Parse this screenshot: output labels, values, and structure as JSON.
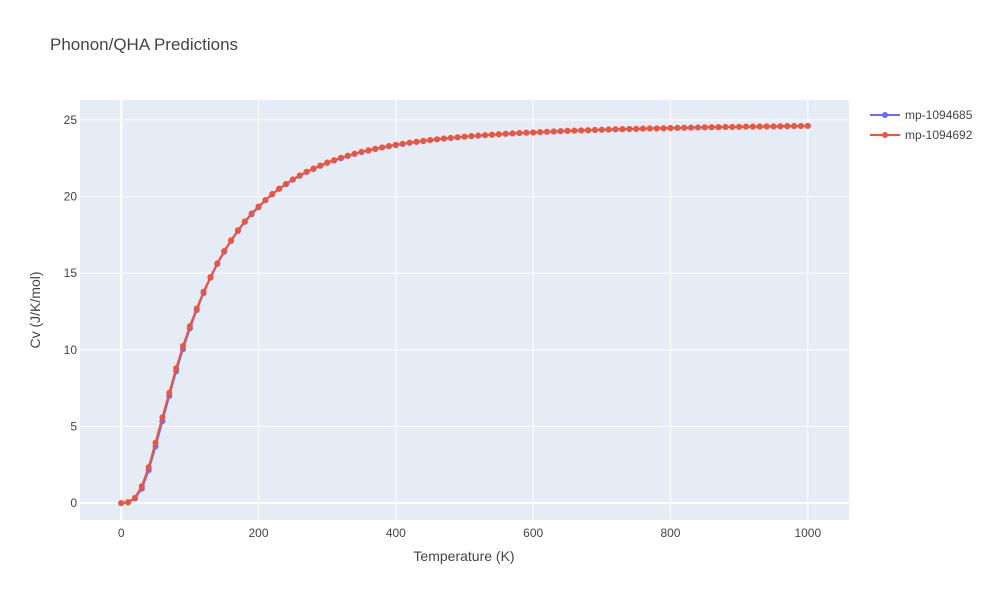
{
  "chart_data": {
    "type": "line",
    "title": "Phonon/QHA Predictions",
    "xlabel": "Temperature (K)",
    "ylabel": "Cv (J/K/mol)",
    "xlim": [
      -60,
      1060
    ],
    "ylim": [
      -1.1,
      26.3
    ],
    "xticks": [
      0,
      200,
      400,
      600,
      800,
      1000
    ],
    "xtick_labels": [
      "0",
      "200",
      "400",
      "600",
      "800",
      "1000"
    ],
    "yticks": [
      0,
      5,
      10,
      15,
      20,
      25
    ],
    "ytick_labels": [
      "0",
      "5",
      "10",
      "15",
      "20",
      "25"
    ],
    "grid": true,
    "legend_position": "top-right",
    "x": [
      0,
      10,
      20,
      30,
      40,
      50,
      60,
      70,
      80,
      90,
      100,
      110,
      120,
      130,
      140,
      150,
      160,
      170,
      180,
      190,
      200,
      210,
      220,
      230,
      240,
      250,
      260,
      270,
      280,
      290,
      300,
      310,
      320,
      330,
      340,
      350,
      360,
      370,
      380,
      390,
      400,
      410,
      420,
      430,
      440,
      450,
      460,
      470,
      480,
      490,
      500,
      510,
      520,
      530,
      540,
      550,
      560,
      570,
      580,
      590,
      600,
      610,
      620,
      630,
      640,
      650,
      660,
      670,
      680,
      690,
      700,
      710,
      720,
      730,
      740,
      750,
      760,
      770,
      780,
      790,
      800,
      810,
      820,
      830,
      840,
      850,
      860,
      870,
      880,
      890,
      900,
      910,
      920,
      930,
      940,
      950,
      960,
      970,
      980,
      990,
      1000
    ],
    "series": [
      {
        "name": "mp-1094685",
        "color": "#636efa",
        "values": [
          0,
          0.05,
          0.3,
          0.95,
          2.15,
          3.7,
          5.35,
          7.0,
          8.6,
          10.05,
          11.4,
          12.6,
          13.7,
          14.7,
          15.6,
          16.4,
          17.1,
          17.75,
          18.35,
          18.85,
          19.3,
          19.75,
          20.15,
          20.5,
          20.8,
          21.1,
          21.35,
          21.6,
          21.8,
          22.0,
          22.2,
          22.35,
          22.5,
          22.65,
          22.78,
          22.9,
          23.0,
          23.1,
          23.2,
          23.28,
          23.36,
          23.43,
          23.5,
          23.56,
          23.62,
          23.68,
          23.73,
          23.78,
          23.82,
          23.86,
          23.9,
          23.94,
          23.97,
          24.0,
          24.03,
          24.06,
          24.09,
          24.12,
          24.14,
          24.16,
          24.18,
          24.2,
          24.22,
          24.24,
          24.26,
          24.28,
          24.3,
          24.31,
          24.33,
          24.34,
          24.36,
          24.37,
          24.38,
          24.39,
          24.41,
          24.42,
          24.43,
          24.44,
          24.45,
          24.46,
          24.47,
          24.48,
          24.49,
          24.5,
          24.51,
          24.51,
          24.52,
          24.53,
          24.54,
          24.54,
          24.55,
          24.56,
          24.56,
          24.57,
          24.58,
          24.58,
          24.59,
          24.59,
          24.6,
          24.6,
          24.61
        ]
      },
      {
        "name": "mp-1094692",
        "color": "#ef553b",
        "values": [
          0,
          0.07,
          0.35,
          1.1,
          2.35,
          3.95,
          5.6,
          7.2,
          8.8,
          10.25,
          11.55,
          12.7,
          13.8,
          14.75,
          15.65,
          16.45,
          17.15,
          17.8,
          18.38,
          18.9,
          19.35,
          19.78,
          20.17,
          20.52,
          20.83,
          21.12,
          21.38,
          21.62,
          21.83,
          22.03,
          22.22,
          22.38,
          22.53,
          22.67,
          22.8,
          22.92,
          23.02,
          23.12,
          23.21,
          23.3,
          23.38,
          23.45,
          23.52,
          23.58,
          23.64,
          23.69,
          23.74,
          23.79,
          23.83,
          23.87,
          23.91,
          23.95,
          23.98,
          24.01,
          24.04,
          24.07,
          24.1,
          24.12,
          24.15,
          24.17,
          24.19,
          24.21,
          24.23,
          24.25,
          24.27,
          24.29,
          24.3,
          24.32,
          24.33,
          24.35,
          24.36,
          24.38,
          24.39,
          24.4,
          24.41,
          24.42,
          24.43,
          24.44,
          24.45,
          24.46,
          24.47,
          24.48,
          24.49,
          24.5,
          24.51,
          24.52,
          24.52,
          24.53,
          24.54,
          24.55,
          24.55,
          24.56,
          24.57,
          24.57,
          24.58,
          24.58,
          24.59,
          24.6,
          24.6,
          24.61,
          24.61
        ]
      }
    ]
  }
}
